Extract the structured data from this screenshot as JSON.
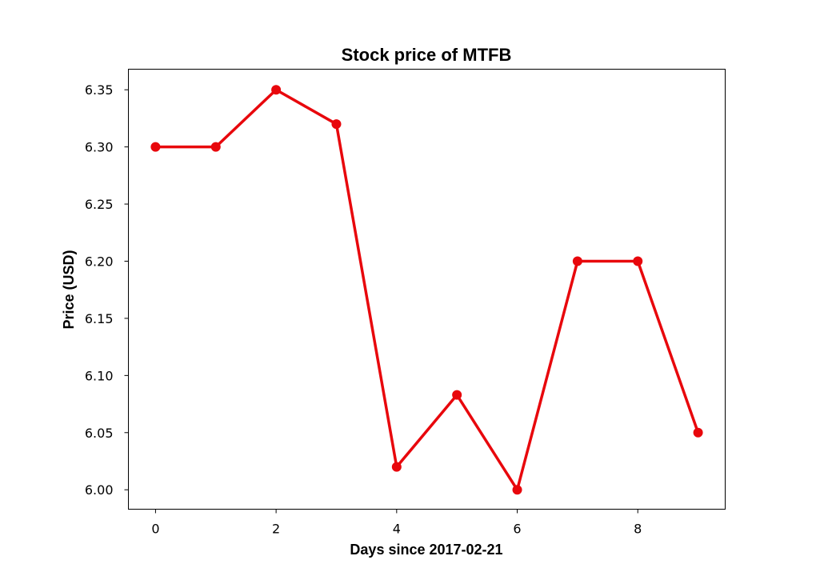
{
  "chart_data": {
    "type": "line",
    "title": "Stock price of MTFB",
    "xlabel": "Days since 2017-02-21",
    "ylabel": "Price (USD)",
    "x": [
      0,
      1,
      2,
      3,
      4,
      5,
      6,
      7,
      8,
      9
    ],
    "series": [
      {
        "values": [
          6.3,
          6.3,
          6.35,
          6.32,
          6.02,
          6.083,
          6.0,
          6.2,
          6.2,
          6.05
        ],
        "color": "#e8070c"
      }
    ],
    "xlim": [
      -0.45,
      9.45
    ],
    "ylim": [
      5.983,
      6.368
    ],
    "xticks": [
      0,
      2,
      4,
      6,
      8
    ],
    "xtick_labels": [
      "0",
      "2",
      "4",
      "6",
      "8"
    ],
    "yticks": [
      6.0,
      6.05,
      6.1,
      6.15,
      6.2,
      6.25,
      6.3,
      6.35
    ],
    "ytick_labels": [
      "6.00",
      "6.05",
      "6.10",
      "6.15",
      "6.20",
      "6.25",
      "6.30",
      "6.35"
    ],
    "grid": false,
    "marker": "circle"
  }
}
